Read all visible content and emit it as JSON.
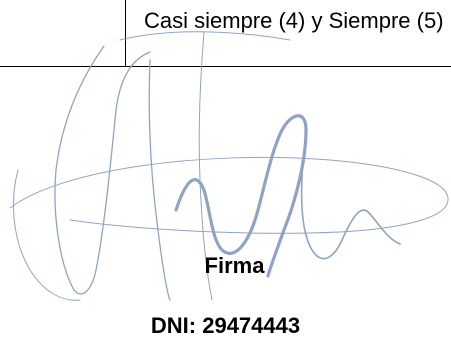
{
  "table": {
    "cell_text": "Casi siempre (4) y Siempre (5)"
  },
  "signature": {
    "label": "Firma",
    "dni": "DNI: 29474443",
    "ink_color": "#8fa4c4"
  }
}
